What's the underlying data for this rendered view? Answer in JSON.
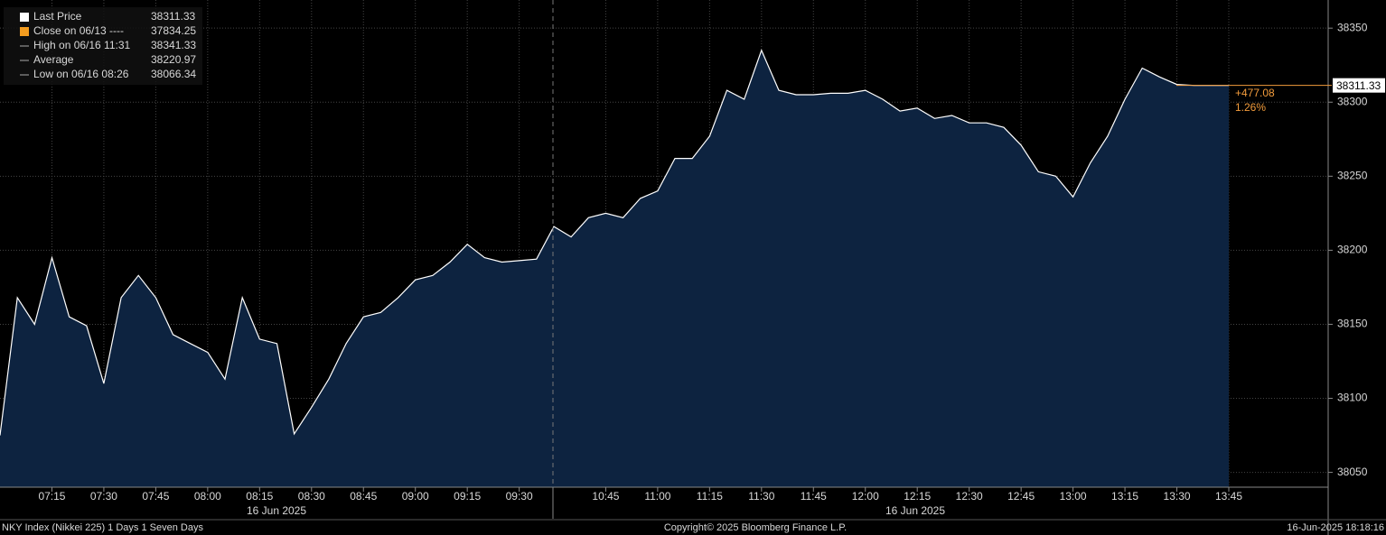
{
  "chart_data": {
    "type": "area",
    "categories": [
      null,
      null,
      null,
      "07:15",
      null,
      null,
      "07:30",
      null,
      null,
      "07:45",
      null,
      null,
      "08:00",
      null,
      null,
      "08:15",
      null,
      null,
      "08:30",
      null,
      null,
      "08:45",
      null,
      null,
      "09:00",
      null,
      null,
      "09:15",
      null,
      null,
      "09:30",
      null,
      null,
      null,
      null,
      "10:45",
      null,
      null,
      "11:00",
      null,
      null,
      "11:15",
      null,
      null,
      "11:30",
      null,
      null,
      "11:45",
      null,
      null,
      "12:00",
      null,
      null,
      "12:15",
      null,
      null,
      "12:30",
      null,
      null,
      "12:45",
      null,
      null,
      "13:00",
      null,
      null,
      "13:15",
      null,
      null,
      "13:30",
      null,
      null,
      "13:45"
    ],
    "values": [
      38075,
      38168,
      38150,
      38195,
      38155,
      38149,
      38110,
      38168,
      38183,
      38168,
      38143,
      38137,
      38131,
      38113,
      38168,
      38140,
      38137,
      38076,
      38094,
      38113,
      38137,
      38155,
      38158,
      38168,
      38180,
      38183,
      38192,
      38204,
      38195,
      38192,
      38193,
      38194,
      38216,
      38209,
      38222,
      38225,
      38222,
      38235,
      38240,
      38262,
      38262,
      38277,
      38308,
      38302,
      38335,
      38308,
      38305,
      38305,
      38306,
      38306,
      38308,
      38302,
      38294,
      38296,
      38289,
      38291,
      38286,
      38286,
      38283,
      38271,
      38253,
      38250,
      38236,
      38259,
      38277,
      38302,
      38323,
      38317,
      38312,
      38311.33,
      38311.33,
      38311.33
    ],
    "color": "#ffffff",
    "fill": "#0d2340",
    "date_labels": [
      "16 Jun 2025",
      "16 Jun 2025"
    ],
    "ylim": [
      38040,
      38369
    ],
    "yticks": [
      38050,
      38100,
      38150,
      38200,
      38250,
      38300,
      38350
    ],
    "grid": true,
    "last_price": 38311.33,
    "last_color": "#f39c3c",
    "annotations": [
      "+477.08",
      "1.26%"
    ],
    "legend": [
      {
        "name": "Last Price",
        "value": 38311.33,
        "color": "#ffffff"
      },
      {
        "name": "Close on 06/13 ----",
        "value": 37834.25,
        "color": "#f39c1f"
      },
      {
        "name": "High on 06/16 11:31",
        "value": 38341.33
      },
      {
        "name": "Average",
        "value": 38220.97
      },
      {
        "name": "Low on 06/16 08:26",
        "value": 38066.34
      }
    ],
    "footer": [
      "NKY Index (Nikkei 225) 1 Days 1 Seven Days",
      "Copyright© 2025 Bloomberg Finance L.P.",
      "16-Jun-2025 18:18:16"
    ]
  }
}
